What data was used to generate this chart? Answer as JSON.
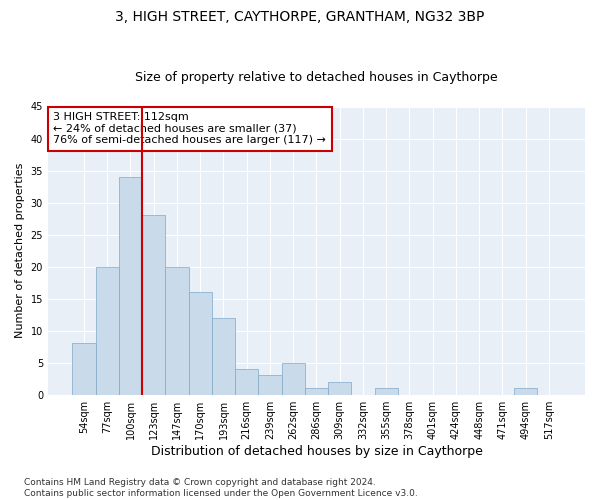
{
  "title": "3, HIGH STREET, CAYTHORPE, GRANTHAM, NG32 3BP",
  "subtitle": "Size of property relative to detached houses in Caythorpe",
  "xlabel": "Distribution of detached houses by size in Caythorpe",
  "ylabel": "Number of detached properties",
  "bin_labels": [
    "54sqm",
    "77sqm",
    "100sqm",
    "123sqm",
    "147sqm",
    "170sqm",
    "193sqm",
    "216sqm",
    "239sqm",
    "262sqm",
    "286sqm",
    "309sqm",
    "332sqm",
    "355sqm",
    "378sqm",
    "401sqm",
    "424sqm",
    "448sqm",
    "471sqm",
    "494sqm",
    "517sqm"
  ],
  "bin_values": [
    8,
    20,
    34,
    28,
    20,
    16,
    12,
    4,
    3,
    5,
    1,
    2,
    0,
    1,
    0,
    0,
    0,
    0,
    0,
    1,
    0
  ],
  "bar_color": "#c9daea",
  "bar_edge_color": "#7fa8c8",
  "bar_edge_width": 0.5,
  "vline_x": 2.5,
  "vline_color": "#cc0000",
  "annotation_text": "3 HIGH STREET: 112sqm\n← 24% of detached houses are smaller (37)\n76% of semi-detached houses are larger (117) →",
  "annotation_box_color": "#ffffff",
  "annotation_box_edge_color": "#cc0000",
  "ylim": [
    0,
    45
  ],
  "yticks": [
    0,
    5,
    10,
    15,
    20,
    25,
    30,
    35,
    40,
    45
  ],
  "bg_color": "#e8eff7",
  "footer_text": "Contains HM Land Registry data © Crown copyright and database right 2024.\nContains public sector information licensed under the Open Government Licence v3.0.",
  "title_fontsize": 10,
  "subtitle_fontsize": 9,
  "annotation_fontsize": 8,
  "footer_fontsize": 6.5,
  "ylabel_fontsize": 8,
  "xlabel_fontsize": 9,
  "tick_fontsize": 7
}
